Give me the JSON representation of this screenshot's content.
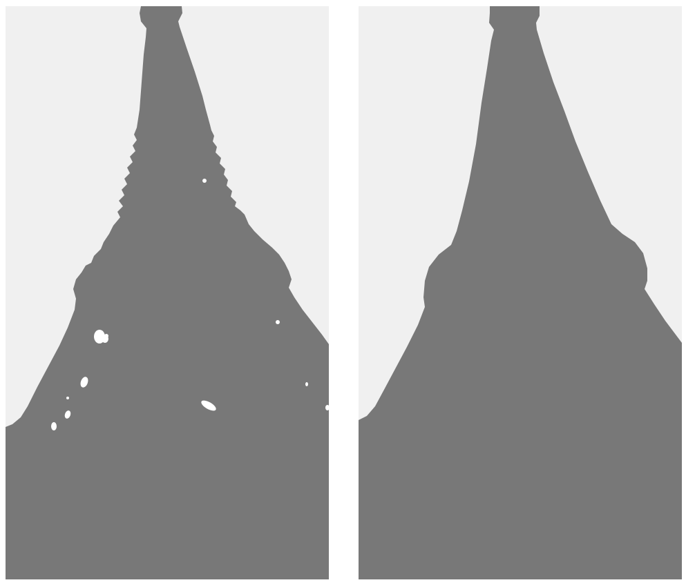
{
  "colors": {
    "background": "#f0f0f0",
    "shape": "#787878",
    "holes": "#ffffff",
    "page": "#ffffff"
  },
  "panels": [
    {
      "id": "left",
      "variant": "noisy segmentation with holes"
    },
    {
      "id": "right",
      "variant": "smoothed segmentation"
    }
  ]
}
